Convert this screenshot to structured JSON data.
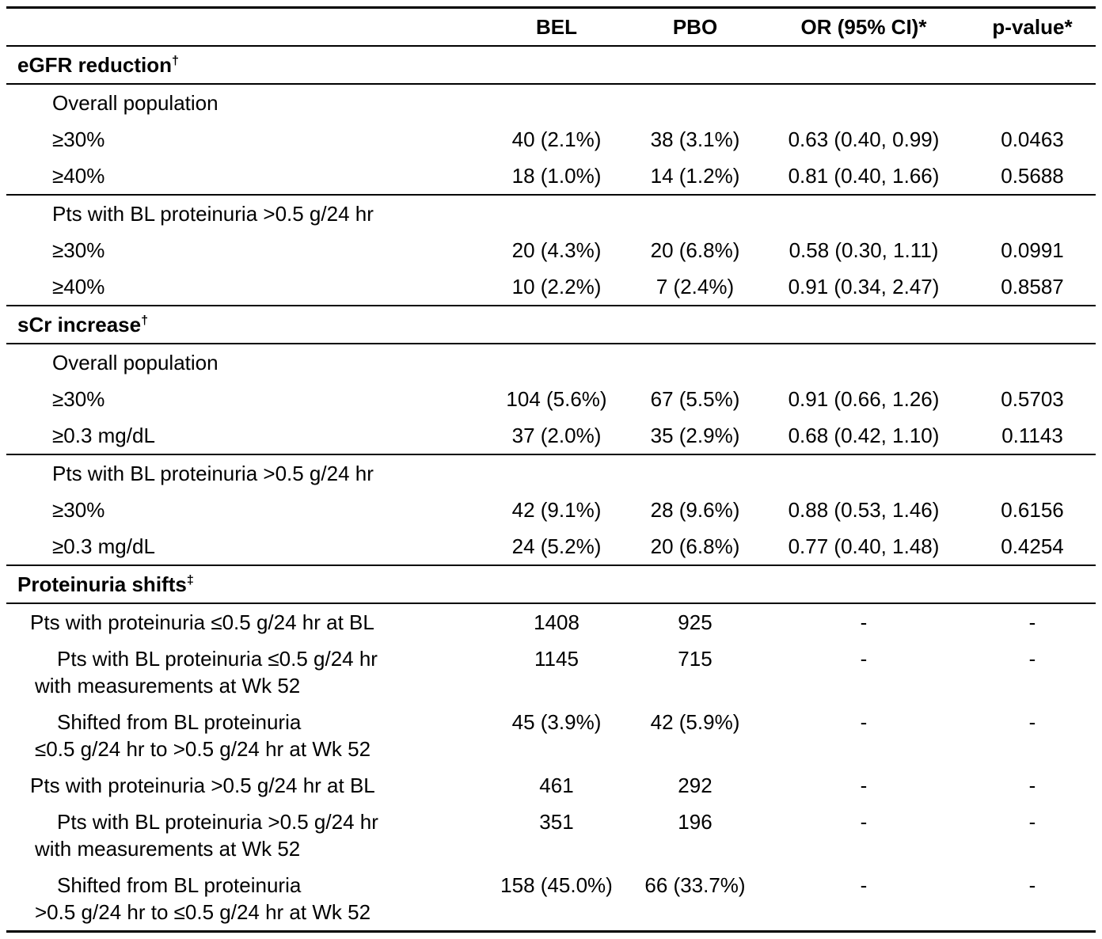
{
  "header": {
    "label": "",
    "bel": "BEL",
    "pbo": "PBO",
    "or": "OR (95% CI)*",
    "p": "p-value*"
  },
  "rows": [
    {
      "type": "section",
      "label": "eGFR reduction",
      "sup": "†"
    },
    {
      "type": "group",
      "label": "Overall population"
    },
    {
      "type": "data",
      "label": "≥30%",
      "bel": "40 (2.1%)",
      "pbo": "38 (3.1%)",
      "or": "0.63 (0.40, 0.99)",
      "p": "0.0463"
    },
    {
      "type": "data",
      "label": "≥40%",
      "bel": "18 (1.0%)",
      "pbo": "14 (1.2%)",
      "or": "0.81 (0.40, 1.66)",
      "p": "0.5688"
    },
    {
      "type": "group",
      "label": "Pts with BL proteinuria >0.5 g/24 hr"
    },
    {
      "type": "data",
      "label": "≥30%",
      "bel": "20 (4.3%)",
      "pbo": "20 (6.8%)",
      "or": "0.58 (0.30, 1.11)",
      "p": "0.0991"
    },
    {
      "type": "data",
      "label": "≥40%",
      "bel": "10 (2.2%)",
      "pbo": "7 (2.4%)",
      "or": "0.91 (0.34, 2.47)",
      "p": "0.8587"
    },
    {
      "type": "section",
      "label": "sCr increase",
      "sup": "†"
    },
    {
      "type": "group",
      "label": "Overall population"
    },
    {
      "type": "data",
      "label": "≥30%",
      "bel": "104 (5.6%)",
      "pbo": "67 (5.5%)",
      "or": "0.91 (0.66, 1.26)",
      "p": "0.5703"
    },
    {
      "type": "data",
      "label": "≥0.3 mg/dL",
      "bel": "37 (2.0%)",
      "pbo": "35 (2.9%)",
      "or": "0.68 (0.42, 1.10)",
      "p": "0.1143"
    },
    {
      "type": "group",
      "label": "Pts with BL proteinuria >0.5 g/24 hr"
    },
    {
      "type": "data",
      "label": "≥30%",
      "bel": "42 (9.1%)",
      "pbo": "28 (9.6%)",
      "or": "0.88 (0.53, 1.46)",
      "p": "0.6156"
    },
    {
      "type": "data",
      "label": "≥0.3 mg/dL",
      "bel": "24 (5.2%)",
      "pbo": "20 (6.8%)",
      "or": "0.77 (0.40, 1.48)",
      "p": "0.4254"
    },
    {
      "type": "section",
      "label": "Proteinuria shifts",
      "sup": "‡"
    },
    {
      "type": "data",
      "label": "Pts with proteinuria ≤0.5 g/24 hr at BL",
      "bel": "1408",
      "pbo": "925",
      "or": "-",
      "p": "-"
    },
    {
      "type": "data",
      "label": "Pts with BL proteinuria ≤0.5 g/24 hr",
      "label2": "with measurements at Wk 52",
      "bel": "1145",
      "pbo": "715",
      "or": "-",
      "p": "-"
    },
    {
      "type": "data",
      "label": "Shifted from BL proteinuria",
      "label2": "≤0.5 g/24 hr to >0.5 g/24 hr at Wk 52",
      "bel": "45 (3.9%)",
      "pbo": "42 (5.9%)",
      "or": "-",
      "p": "-"
    },
    {
      "type": "data",
      "label": "Pts with proteinuria >0.5 g/24 hr at BL",
      "bel": "461",
      "pbo": "292",
      "or": "-",
      "p": "-"
    },
    {
      "type": "data",
      "label": "Pts with BL proteinuria >0.5 g/24 hr",
      "label2": "with measurements at Wk 52",
      "bel": "351",
      "pbo": "196",
      "or": "-",
      "p": "-"
    },
    {
      "type": "data",
      "label": "Shifted from BL proteinuria",
      "label2": ">0.5 g/24 hr to ≤0.5 g/24 hr at Wk 52",
      "bel": "158 (45.0%)",
      "pbo": "66 (33.7%)",
      "or": "-",
      "p": "-"
    }
  ]
}
